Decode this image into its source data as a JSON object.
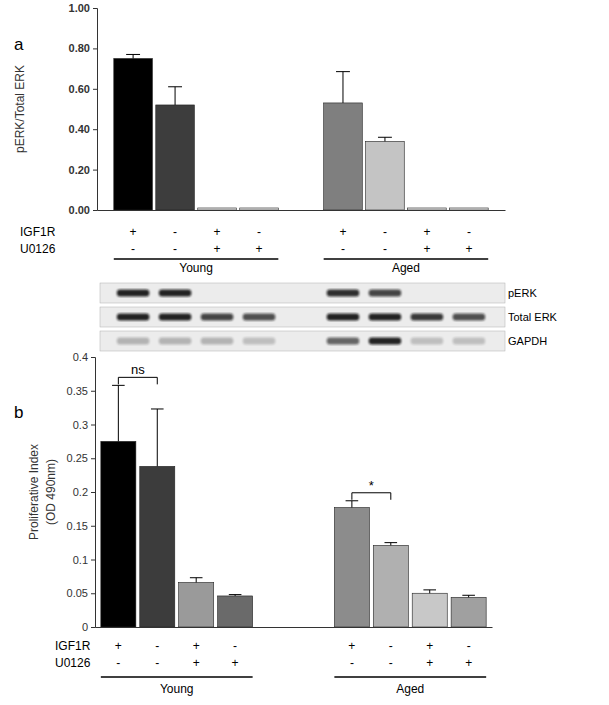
{
  "chart_data": [
    {
      "type": "bar",
      "panel": "a",
      "y_label": "pERK/Total ERK",
      "ylim": [
        0,
        1
      ],
      "yticks": [
        {
          "value": 0,
          "label": "0.00"
        },
        {
          "value": 0.2,
          "label": "0.20"
        },
        {
          "value": 0.4,
          "label": "0.40"
        },
        {
          "value": 0.6,
          "label": "0.60"
        },
        {
          "value": 0.8,
          "label": "0.80"
        },
        {
          "value": 1,
          "label": "1.00"
        }
      ],
      "categories": [
        null,
        null,
        null,
        null,
        null,
        null,
        null,
        null
      ],
      "values": [
        0.75,
        0.52,
        0.01,
        0.01,
        0.53,
        0.34,
        0.01,
        0.01
      ],
      "errors": [
        0.02,
        0.09,
        null,
        null,
        0.155,
        0.02,
        null,
        null
      ],
      "colors": [
        "#000000",
        "#3d3d3d",
        "#e6e6e6",
        "#e6e6e6",
        "#7f7f7f",
        "#c4c4c4",
        "#e6e6e6",
        "#e6e6e6"
      ],
      "conditions": [
        {
          "label": "IGF1R",
          "values": [
            "+",
            "-",
            "+",
            "-",
            "+",
            "-",
            "+",
            "-"
          ]
        },
        {
          "label": "U0126",
          "values": [
            "-",
            "-",
            "+",
            "+",
            "-",
            "-",
            "+",
            "+"
          ]
        }
      ],
      "groups": [
        "Young",
        "Aged"
      ],
      "blot": [
        {
          "label": "pERK",
          "intensity": [
            0.9,
            0.9,
            0,
            0,
            0.85,
            0.75,
            0,
            0
          ]
        },
        {
          "label": "Total ERK",
          "intensity": [
            0.9,
            0.9,
            0.75,
            0.7,
            0.9,
            0.9,
            0.8,
            0.7
          ]
        },
        {
          "label": "GAPDH",
          "intensity": [
            0.25,
            0.25,
            0.25,
            0.2,
            0.6,
            0.9,
            0.2,
            0.2
          ]
        }
      ]
    },
    {
      "type": "bar",
      "panel": "b",
      "y_label": [
        "Proliferative Index",
        "(OD 490nm)"
      ],
      "ylim": [
        0,
        0.4
      ],
      "yticks": [
        0,
        0.05,
        0.1,
        0.15,
        0.2,
        0.25,
        0.3,
        0.35,
        0.4
      ],
      "categories": [
        null,
        null,
        null,
        null,
        null,
        null,
        null,
        null
      ],
      "values": [
        0.275,
        0.238,
        0.066,
        0.046,
        0.177,
        0.121,
        0.05,
        0.044
      ],
      "errors": [
        0.083,
        0.085,
        0.007,
        0.002,
        0.01,
        0.004,
        0.005,
        0.003
      ],
      "colors": [
        "#000000",
        "#3c3c3c",
        "#9a9a9a",
        "#6a6a6a",
        "#8c8c8c",
        "#b0b0b0",
        "#c8c8c8",
        "#a0a0a0"
      ],
      "conditions": [
        {
          "label": "IGF1R",
          "values": [
            "+",
            "-",
            "+",
            "-",
            "+",
            "-",
            "+",
            "-"
          ]
        },
        {
          "label": "U0126",
          "values": [
            "-",
            "-",
            "+",
            "+",
            "-",
            "-",
            "+",
            "+"
          ]
        }
      ],
      "groups": [
        "Young",
        "Aged"
      ],
      "annotations": [
        {
          "text": "ns",
          "bars": [
            0,
            1
          ]
        },
        {
          "text": "*",
          "bars": [
            4,
            5
          ]
        }
      ]
    }
  ]
}
